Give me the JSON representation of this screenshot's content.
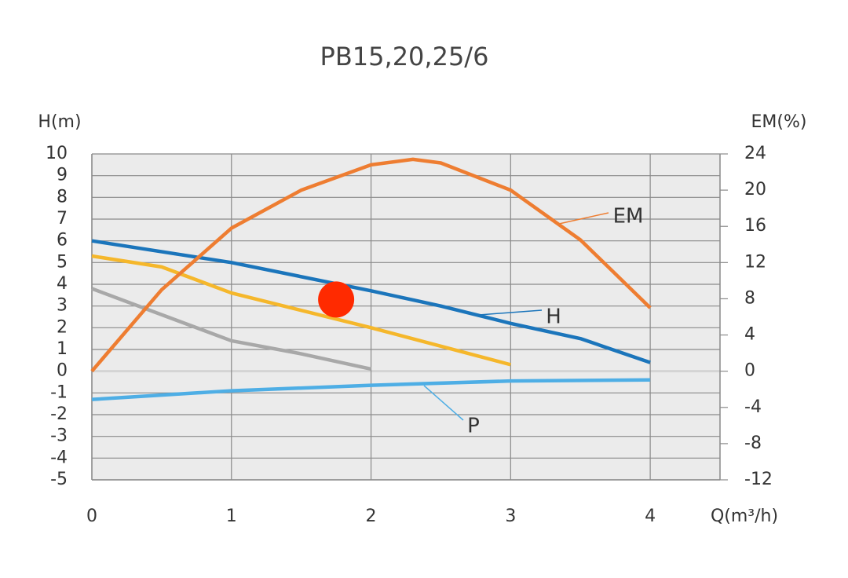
{
  "chart_data": {
    "type": "line",
    "title": "PB15,20,25/6",
    "y_label": "H(m)",
    "y2_label": "EM(%)",
    "x_label": "Q(m³/h)",
    "xlim": [
      0,
      4.5
    ],
    "xticks": [
      0,
      1,
      2,
      3,
      4
    ],
    "ylim": [
      -5,
      10
    ],
    "yticks": [
      -5,
      -4,
      -3,
      -2,
      -1,
      0,
      1,
      2,
      3,
      4,
      5,
      6,
      7,
      8,
      9,
      10
    ],
    "y2lim": [
      -12,
      24
    ],
    "y2ticks": [
      -12,
      -8,
      -4,
      0,
      4,
      8,
      12,
      16,
      20,
      24
    ],
    "grid": true,
    "series": [
      {
        "name": "H",
        "color": "#1b75bb",
        "x": [
          0,
          1,
          2,
          2.5,
          3,
          3.5,
          4
        ],
        "values": [
          6,
          5,
          3.7,
          3.0,
          2.2,
          1.5,
          0.4
        ]
      },
      {
        "color": "#f5b72b",
        "x": [
          0,
          0.5,
          1,
          2,
          3
        ],
        "values": [
          5.3,
          4.8,
          3.6,
          2.0,
          0.3
        ]
      },
      {
        "color": "#a8a8a8",
        "x": [
          0,
          0.5,
          1,
          1.5,
          2
        ],
        "values": [
          3.8,
          2.6,
          1.4,
          0.8,
          0.1
        ]
      },
      {
        "name": "P",
        "color": "#4eaee5",
        "x": [
          0,
          1,
          2,
          3,
          4
        ],
        "values": [
          -1.3,
          -0.9,
          -0.65,
          -0.45,
          -0.4
        ]
      },
      {
        "name": "EM",
        "color": "#ee7d31",
        "axis": "y2",
        "x": [
          0,
          0.5,
          1,
          1.5,
          2,
          2.3,
          2.5,
          3,
          3.5,
          4
        ],
        "values": [
          0,
          9,
          15.8,
          20,
          22.8,
          23.4,
          23,
          20,
          14.5,
          7
        ]
      }
    ],
    "marker": {
      "x": 1.75,
      "y": 3.3,
      "color": "#ff2a00"
    }
  }
}
